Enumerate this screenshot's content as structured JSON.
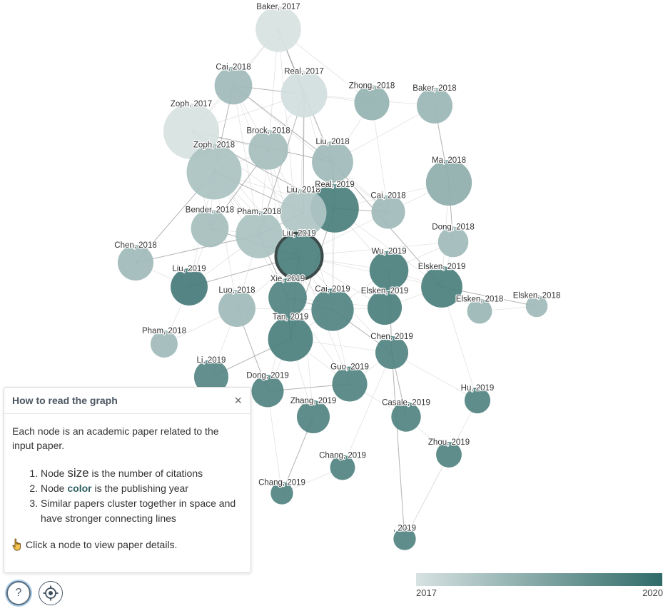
{
  "graph": {
    "focus_node": "Liu, 2019",
    "year_range": [
      2017,
      2020
    ],
    "nodes": [
      {
        "id": "baker2017",
        "label": "Baker, 2017",
        "year": 2017.0,
        "citations": 180
      },
      {
        "id": "cai2018a",
        "label": "Cai, 2018",
        "year": 2018.0,
        "citations": 110
      },
      {
        "id": "real2017",
        "label": "Real, 2017",
        "year": 2017.1,
        "citations": 190
      },
      {
        "id": "zhong2018",
        "label": "Zhong, 2018",
        "year": 2018.2,
        "citations": 90
      },
      {
        "id": "baker2018",
        "label": "Baker, 2018",
        "year": 2018.1,
        "citations": 95
      },
      {
        "id": "zoph2017",
        "label": "Zoph, 2017",
        "year": 2017.0,
        "citations": 300
      },
      {
        "id": "brock2018",
        "label": "Brock, 2018",
        "year": 2017.9,
        "citations": 125
      },
      {
        "id": "liu2018a",
        "label": "Liu, 2018",
        "year": 2018.0,
        "citations": 140
      },
      {
        "id": "ma2018",
        "label": "Ma, 2018",
        "year": 2018.3,
        "citations": 185
      },
      {
        "id": "zoph2018",
        "label": "Zoph, 2018",
        "year": 2017.8,
        "citations": 290
      },
      {
        "id": "liu2018b",
        "label": "Liu, 2018",
        "year": 2017.7,
        "citations": 190
      },
      {
        "id": "real2019",
        "label": "Real, 2019",
        "year": 2019.5,
        "citations": 210
      },
      {
        "id": "cai2018b",
        "label": "Cai, 2018",
        "year": 2018.0,
        "citations": 80
      },
      {
        "id": "bender2018",
        "label": "Bender, 2018",
        "year": 2017.9,
        "citations": 110
      },
      {
        "id": "pham2018a",
        "label": "Pham, 2018",
        "year": 2017.8,
        "citations": 195
      },
      {
        "id": "dong2018",
        "label": "Dong, 2018",
        "year": 2018.0,
        "citations": 60
      },
      {
        "id": "chen2018",
        "label": "Chen, 2018",
        "year": 2018.0,
        "citations": 95
      },
      {
        "id": "liu2019a",
        "label": "Liu, 2019",
        "year": 2019.5,
        "citations": 190
      },
      {
        "id": "wu2019",
        "label": "Wu, 2019",
        "year": 2019.5,
        "citations": 120
      },
      {
        "id": "liu2019b",
        "label": "Liu, 2019",
        "year": 2019.6,
        "citations": 105
      },
      {
        "id": "elsken2019a",
        "label": "Elsken, 2019",
        "year": 2019.5,
        "citations": 140
      },
      {
        "id": "luo2018",
        "label": "Luo, 2018",
        "year": 2018.0,
        "citations": 105
      },
      {
        "id": "xie2019",
        "label": "Xie, 2019",
        "year": 2019.4,
        "citations": 115
      },
      {
        "id": "cai2019",
        "label": "Cai, 2019",
        "year": 2019.4,
        "citations": 150
      },
      {
        "id": "elsken2019b",
        "label": "Elsken, 2019",
        "year": 2019.5,
        "citations": 85
      },
      {
        "id": "elsken2018a",
        "label": "Elsken, 2018",
        "year": 2018.1,
        "citations": 32
      },
      {
        "id": "elsken2018b",
        "label": "Elsken, 2018",
        "year": 2018.0,
        "citations": 20
      },
      {
        "id": "pham2018b",
        "label": "Pham, 2018",
        "year": 2018.0,
        "citations": 42
      },
      {
        "id": "tan2019",
        "label": "Tan, 2019",
        "year": 2019.5,
        "citations": 175
      },
      {
        "id": "chen2019",
        "label": "Chen, 2019",
        "year": 2019.4,
        "citations": 75
      },
      {
        "id": "li2019",
        "label": "Li, 2019",
        "year": 2019.3,
        "citations": 85
      },
      {
        "id": "dong2019",
        "label": "Dong, 2019",
        "year": 2019.4,
        "citations": 70
      },
      {
        "id": "guo2019",
        "label": "Guo, 2019",
        "year": 2019.4,
        "citations": 90
      },
      {
        "id": "hu2019",
        "label": "Hu, 2019",
        "year": 2019.4,
        "citations": 36
      },
      {
        "id": "zhang2019",
        "label": "Zhang, 2019",
        "year": 2019.4,
        "citations": 75
      },
      {
        "id": "casale2019",
        "label": "Casale, 2019",
        "year": 2019.4,
        "citations": 55
      },
      {
        "id": "zhou2019",
        "label": "Zhou, 2019",
        "year": 2019.4,
        "citations": 35
      },
      {
        "id": "chang2019a",
        "label": "Chang, 2019",
        "year": 2019.4,
        "citations": 32
      },
      {
        "id": "chang2019b",
        "label": "Chang, 2019",
        "year": 2019.4,
        "citations": 22
      },
      {
        "id": "x2019",
        "label": ", 2019",
        "year": 2019.4,
        "citations": 22
      }
    ],
    "edges": [
      [
        "baker2017",
        "real2017"
      ],
      [
        "baker2017",
        "cai2018a"
      ],
      [
        "baker2017",
        "zoph2017"
      ],
      [
        "baker2017",
        "zhong2018"
      ],
      [
        "baker2017",
        "liu2018a"
      ],
      [
        "baker2017",
        "brock2018"
      ],
      [
        "baker2017",
        "liu2019a"
      ],
      [
        "real2017",
        "zoph2017"
      ],
      [
        "real2017",
        "cai2018a"
      ],
      [
        "real2017",
        "zhong2018"
      ],
      [
        "real2017",
        "baker2018"
      ],
      [
        "real2017",
        "liu2018a"
      ],
      [
        "real2017",
        "liu2018b"
      ],
      [
        "real2017",
        "real2019"
      ],
      [
        "real2017",
        "liu2019a"
      ],
      [
        "real2017",
        "brock2018"
      ],
      [
        "real2017",
        "pham2018a"
      ],
      [
        "zoph2017",
        "cai2018a"
      ],
      [
        "zoph2017",
        "zoph2018"
      ],
      [
        "zoph2017",
        "brock2018"
      ],
      [
        "zoph2017",
        "liu2018a"
      ],
      [
        "zoph2017",
        "liu2018b"
      ],
      [
        "zoph2017",
        "pham2018a"
      ],
      [
        "zoph2017",
        "liu2019a"
      ],
      [
        "zoph2017",
        "real2019"
      ],
      [
        "zoph2017",
        "bender2018"
      ],
      [
        "zoph2018",
        "brock2018"
      ],
      [
        "zoph2018",
        "pham2018a"
      ],
      [
        "zoph2018",
        "liu2018b"
      ],
      [
        "zoph2018",
        "liu2019a"
      ],
      [
        "zoph2018",
        "real2019"
      ],
      [
        "zoph2018",
        "bender2018"
      ],
      [
        "zoph2018",
        "cai2018a"
      ],
      [
        "zoph2018",
        "xie2019"
      ],
      [
        "zoph2018",
        "liu2019b"
      ],
      [
        "zoph2018",
        "luo2018"
      ],
      [
        "zoph2018",
        "chen2018"
      ],
      [
        "cai2018a",
        "brock2018"
      ],
      [
        "cai2018a",
        "liu2019a"
      ],
      [
        "cai2018a",
        "pham2018a"
      ],
      [
        "cai2018a",
        "liu2018a"
      ],
      [
        "cai2018a",
        "cai2018b"
      ],
      [
        "brock2018",
        "liu2019a"
      ],
      [
        "brock2018",
        "pham2018a"
      ],
      [
        "brock2018",
        "bender2018"
      ],
      [
        "brock2018",
        "liu2018b"
      ],
      [
        "brock2018",
        "xie2019"
      ],
      [
        "liu2018a",
        "liu2019a"
      ],
      [
        "liu2018a",
        "real2019"
      ],
      [
        "liu2018a",
        "cai2018b"
      ],
      [
        "liu2018a",
        "cai2019"
      ],
      [
        "liu2018a",
        "zhong2018"
      ],
      [
        "liu2018a",
        "elsken2019a"
      ],
      [
        "liu2018a",
        "tan2019"
      ],
      [
        "liu2018b",
        "liu2019a"
      ],
      [
        "liu2018b",
        "real2019"
      ],
      [
        "liu2018b",
        "pham2018a"
      ],
      [
        "liu2018b",
        "xie2019"
      ],
      [
        "liu2018b",
        "cai2019"
      ],
      [
        "real2019",
        "liu2019a"
      ],
      [
        "real2019",
        "cai2018b"
      ],
      [
        "real2019",
        "wu2019"
      ],
      [
        "real2019",
        "elsken2019a"
      ],
      [
        "real2019",
        "cai2019"
      ],
      [
        "real2019",
        "tan2019"
      ],
      [
        "real2019",
        "ma2018"
      ],
      [
        "pham2018a",
        "liu2019a"
      ],
      [
        "pham2018a",
        "bender2018"
      ],
      [
        "pham2018a",
        "xie2019"
      ],
      [
        "pham2018a",
        "luo2018"
      ],
      [
        "pham2018a",
        "liu2019b"
      ],
      [
        "pham2018a",
        "cai2019"
      ],
      [
        "pham2018a",
        "chen2018"
      ],
      [
        "liu2019a",
        "xie2019"
      ],
      [
        "liu2019a",
        "cai2019"
      ],
      [
        "liu2019a",
        "wu2019"
      ],
      [
        "liu2019a",
        "tan2019"
      ],
      [
        "liu2019a",
        "elsken2019a"
      ],
      [
        "liu2019a",
        "elsken2019b"
      ],
      [
        "liu2019a",
        "luo2018"
      ],
      [
        "liu2019a",
        "liu2019b"
      ],
      [
        "liu2019a",
        "chen2019"
      ],
      [
        "liu2019a",
        "dong2018"
      ],
      [
        "liu2019a",
        "cai2018b"
      ],
      [
        "liu2019a",
        "bender2018"
      ],
      [
        "liu2019a",
        "guo2019"
      ],
      [
        "liu2019a",
        "dong2019"
      ],
      [
        "liu2019a",
        "zhang2019"
      ],
      [
        "cai2019",
        "xie2019"
      ],
      [
        "cai2019",
        "tan2019"
      ],
      [
        "cai2019",
        "wu2019"
      ],
      [
        "cai2019",
        "elsken2019b"
      ],
      [
        "cai2019",
        "chen2019"
      ],
      [
        "cai2019",
        "guo2019"
      ],
      [
        "cai2019",
        "luo2018"
      ],
      [
        "wu2019",
        "elsken2019a"
      ],
      [
        "wu2019",
        "chen2019"
      ],
      [
        "wu2019",
        "elsken2019b"
      ],
      [
        "wu2019",
        "dong2018"
      ],
      [
        "elsken2019a",
        "elsken2018a"
      ],
      [
        "elsken2019a",
        "elsken2018b"
      ],
      [
        "elsken2019a",
        "ma2018"
      ],
      [
        "elsken2019a",
        "elsken2019b"
      ],
      [
        "elsken2018a",
        "elsken2018b"
      ],
      [
        "tan2019",
        "xie2019"
      ],
      [
        "tan2019",
        "chen2019"
      ],
      [
        "tan2019",
        "guo2019"
      ],
      [
        "tan2019",
        "dong2019"
      ],
      [
        "tan2019",
        "li2019"
      ],
      [
        "tan2019",
        "zhang2019"
      ],
      [
        "chen2019",
        "guo2019"
      ],
      [
        "chen2019",
        "hu2019"
      ],
      [
        "chen2019",
        "casale2019"
      ],
      [
        "chen2019",
        "chang2019a"
      ],
      [
        "guo2019",
        "zhang2019"
      ],
      [
        "guo2019",
        "casale2019"
      ],
      [
        "guo2019",
        "dong2019"
      ],
      [
        "chang2019a",
        "chang2019b"
      ],
      [
        "casale2019",
        "zhou2019"
      ],
      [
        "zhou2019",
        "x2019"
      ],
      [
        "chen2019",
        "x2019"
      ],
      [
        "li2019",
        "luo2018"
      ],
      [
        "pham2018b",
        "luo2018"
      ],
      [
        "pham2018b",
        "liu2019b"
      ],
      [
        "ma2018",
        "dong2018"
      ],
      [
        "ma2018",
        "cai2018b"
      ],
      [
        "zhong2018",
        "cai2018b"
      ],
      [
        "baker2018",
        "liu2018a"
      ],
      [
        "baker2018",
        "ma2018"
      ],
      [
        "dong2018",
        "elsken2019a"
      ],
      [
        "hu2019",
        "elsken2019a"
      ],
      [
        "hu2019",
        "x2019"
      ],
      [
        "zhang2019",
        "chang2019b"
      ],
      [
        "dong2019",
        "chang2019b"
      ],
      [
        "xie2019",
        "guo2019"
      ],
      [
        "xie2019",
        "elsken2019b"
      ],
      [
        "luo2018",
        "dong2019"
      ],
      [
        "chen2018",
        "liu2019b"
      ],
      [
        "bender2018",
        "liu2019b"
      ]
    ]
  },
  "help": {
    "title": "How to read the graph",
    "close": "×",
    "intro": "Each node is an academic paper related to the input paper.",
    "item1_prefix": "Node ",
    "item1_key": "size",
    "item1_suffix": " is the number of citations",
    "item2_prefix": "Node ",
    "item2_key": "color",
    "item2_suffix": " is the publishing year",
    "item3": "Similar papers cluster together in space and have stronger connecting lines",
    "click_hint": "Click a node to view paper details."
  },
  "controls": {
    "help_label": "?"
  },
  "legend": {
    "min_label": "2017",
    "max_label": "2020",
    "color_start": "#d7e2e1",
    "color_end": "#2f6b69"
  }
}
